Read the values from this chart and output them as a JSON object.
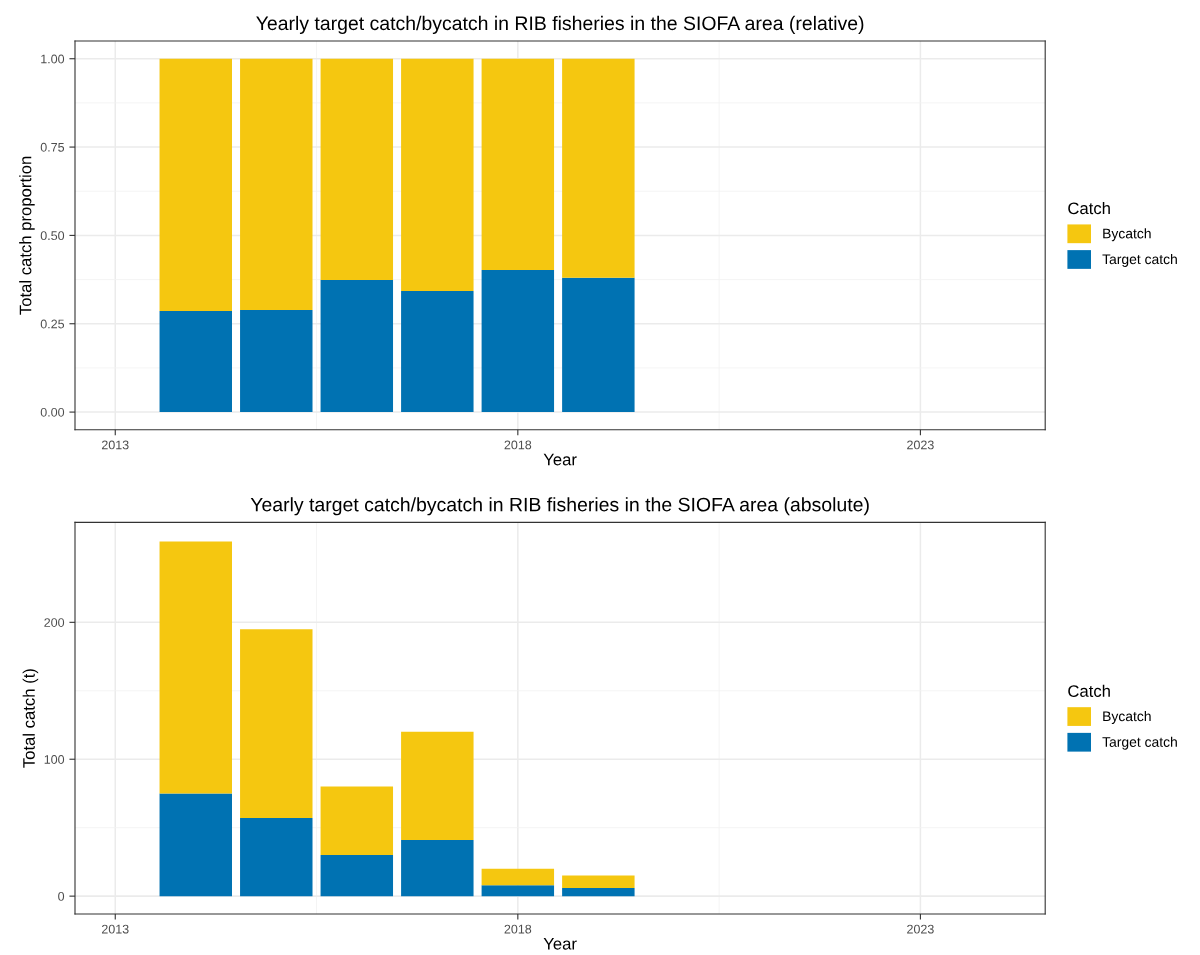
{
  "chart_data": [
    {
      "type": "bar",
      "title": "Yearly target catch/bycatch in RIB fisheries in the SIOFA area (relative)",
      "xlabel": "Year",
      "ylabel": "Total catch proportion",
      "legend_title": "Catch",
      "x": [
        2014,
        2015,
        2016,
        2017,
        2018,
        2019
      ],
      "stacked": true,
      "series": [
        {
          "name": "Target catch",
          "color": "#0072b2",
          "values": [
            0.286,
            0.289,
            0.374,
            0.343,
            0.402,
            0.38
          ]
        },
        {
          "name": "Bycatch",
          "color": "#f5c710",
          "values": [
            0.714,
            0.711,
            0.626,
            0.657,
            0.598,
            0.62
          ]
        }
      ],
      "xlim": [
        2012.5,
        2024.55
      ],
      "xticks": [
        2013,
        2018,
        2023
      ],
      "ylim": [
        -0.05,
        1.05
      ],
      "yticks": [
        {
          "value": 0,
          "label": "0.00"
        },
        {
          "value": 0.25,
          "label": "0.25"
        },
        {
          "value": 0.5,
          "label": "0.50"
        },
        {
          "value": 0.75,
          "label": "0.75"
        },
        {
          "value": 1,
          "label": "1.00"
        }
      ],
      "grid": true,
      "legend": "right"
    },
    {
      "type": "bar",
      "title": "Yearly target catch/bycatch in RIB fisheries in the SIOFA area (absolute)",
      "xlabel": "Year",
      "ylabel": "Total catch (t)",
      "legend_title": "Catch",
      "x": [
        2014,
        2015,
        2016,
        2017,
        2018,
        2019
      ],
      "stacked": true,
      "series": [
        {
          "name": "Target catch",
          "color": "#0072b2",
          "values": [
            75,
            57,
            30,
            41,
            8,
            6
          ]
        },
        {
          "name": "Bycatch",
          "color": "#f5c710",
          "values": [
            184,
            138,
            50,
            79,
            12,
            9
          ]
        }
      ],
      "xlim": [
        2012.5,
        2024.55
      ],
      "xticks": [
        2013,
        2018,
        2023
      ],
      "ylim": [
        -13,
        273
      ],
      "yticks": [
        0,
        100,
        200
      ],
      "grid": true,
      "legend": "right"
    }
  ]
}
